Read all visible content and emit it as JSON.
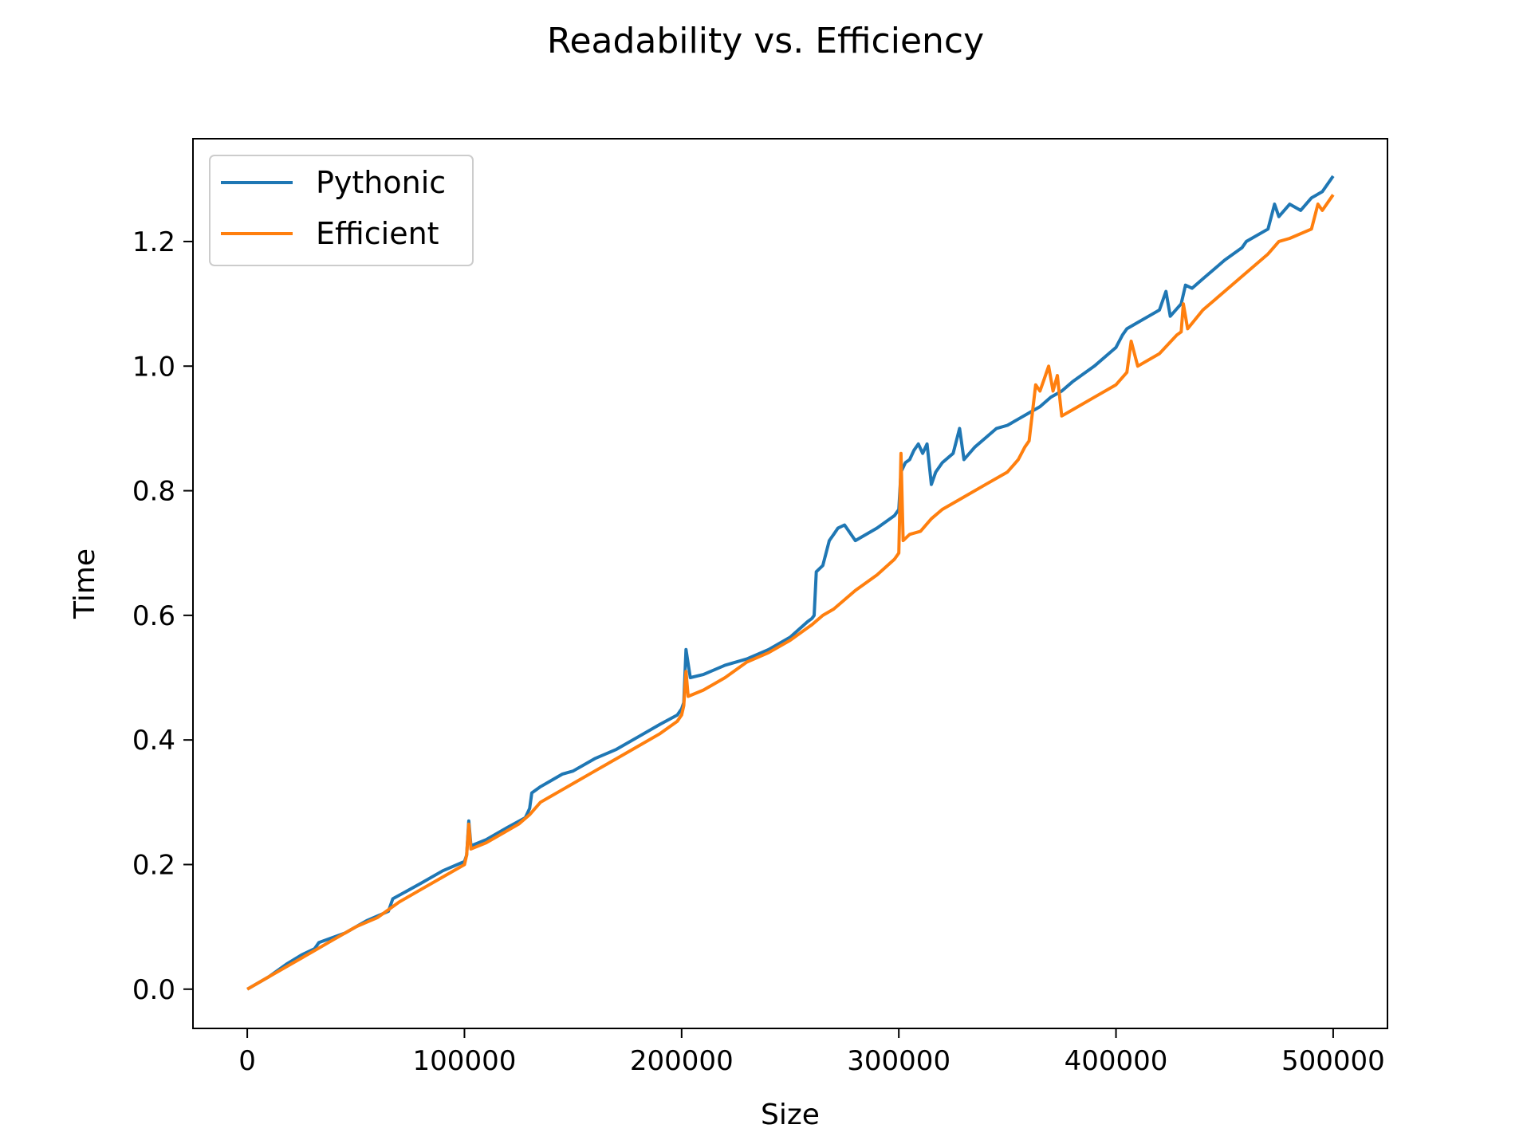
{
  "chart_data": {
    "type": "line",
    "title": "Readability vs. Efficiency",
    "xlabel": "Size",
    "ylabel": "Time",
    "xlim": [
      -25000,
      525000
    ],
    "ylim": [
      -0.063,
      1.365
    ],
    "x_ticks": [
      0,
      100000,
      200000,
      300000,
      400000,
      500000
    ],
    "x_tick_labels": [
      "0",
      "100000",
      "200000",
      "300000",
      "400000",
      "500000"
    ],
    "y_ticks": [
      0.0,
      0.2,
      0.4,
      0.6,
      0.8,
      1.0,
      1.2
    ],
    "y_tick_labels": [
      "0.0",
      "0.2",
      "0.4",
      "0.6",
      "0.8",
      "1.0",
      "1.2"
    ],
    "grid": false,
    "legend_position": "top-left",
    "series": [
      {
        "name": "Pythonic",
        "color": "#1f77b4",
        "x": [
          0,
          10000,
          18000,
          25000,
          31000,
          33000,
          45000,
          55000,
          65000,
          67000,
          80000,
          90000,
          100000,
          101000,
          102000,
          103000,
          110000,
          120000,
          128000,
          130000,
          131000,
          135000,
          140000,
          145000,
          150000,
          160000,
          170000,
          180000,
          190000,
          198000,
          200000,
          201000,
          202000,
          204000,
          210000,
          220000,
          230000,
          240000,
          250000,
          258000,
          260000,
          261000,
          262000,
          265000,
          268000,
          270000,
          272000,
          275000,
          280000,
          290000,
          298000,
          300000,
          301000,
          303000,
          305000,
          307000,
          309000,
          311000,
          313000,
          315000,
          317000,
          320000,
          325000,
          328000,
          330000,
          335000,
          340000,
          345000,
          350000,
          355000,
          360000,
          365000,
          370000,
          375000,
          380000,
          390000,
          400000,
          403000,
          405000,
          410000,
          415000,
          420000,
          423000,
          425000,
          430000,
          432000,
          435000,
          440000,
          450000,
          458000,
          460000,
          470000,
          473000,
          475000,
          480000,
          485000,
          490000,
          495000,
          500000
        ],
        "y": [
          0.0,
          0.02,
          0.04,
          0.055,
          0.065,
          0.075,
          0.09,
          0.11,
          0.125,
          0.145,
          0.17,
          0.19,
          0.205,
          0.215,
          0.27,
          0.23,
          0.24,
          0.26,
          0.275,
          0.29,
          0.315,
          0.325,
          0.335,
          0.345,
          0.35,
          0.37,
          0.385,
          0.405,
          0.425,
          0.44,
          0.45,
          0.46,
          0.545,
          0.5,
          0.505,
          0.52,
          0.53,
          0.545,
          0.565,
          0.59,
          0.595,
          0.6,
          0.67,
          0.68,
          0.72,
          0.73,
          0.74,
          0.745,
          0.72,
          0.74,
          0.76,
          0.77,
          0.83,
          0.845,
          0.85,
          0.865,
          0.875,
          0.86,
          0.875,
          0.81,
          0.83,
          0.845,
          0.86,
          0.9,
          0.85,
          0.87,
          0.885,
          0.9,
          0.905,
          0.915,
          0.925,
          0.935,
          0.95,
          0.96,
          0.975,
          1.0,
          1.03,
          1.05,
          1.06,
          1.07,
          1.08,
          1.09,
          1.12,
          1.08,
          1.1,
          1.13,
          1.125,
          1.14,
          1.17,
          1.19,
          1.2,
          1.22,
          1.26,
          1.24,
          1.26,
          1.25,
          1.27,
          1.28,
          1.305
        ]
      },
      {
        "name": "Efficient",
        "color": "#ff7f0e",
        "x": [
          0,
          10000,
          20000,
          30000,
          40000,
          50000,
          60000,
          70000,
          80000,
          90000,
          100000,
          101000,
          102000,
          103000,
          110000,
          120000,
          125000,
          130000,
          135000,
          140000,
          145000,
          150000,
          160000,
          170000,
          180000,
          190000,
          198000,
          200000,
          201000,
          202000,
          203000,
          210000,
          220000,
          230000,
          240000,
          250000,
          260000,
          265000,
          270000,
          280000,
          290000,
          298000,
          300000,
          301000,
          302000,
          305000,
          310000,
          315000,
          320000,
          330000,
          340000,
          350000,
          355000,
          358000,
          360000,
          363000,
          365000,
          367000,
          369000,
          371000,
          373000,
          375000,
          380000,
          390000,
          400000,
          405000,
          407000,
          410000,
          420000,
          428000,
          430000,
          431000,
          433000,
          440000,
          450000,
          460000,
          470000,
          475000,
          480000,
          490000,
          493000,
          495000,
          500000
        ],
        "y": [
          0.0,
          0.02,
          0.04,
          0.06,
          0.08,
          0.1,
          0.115,
          0.14,
          0.16,
          0.18,
          0.2,
          0.215,
          0.265,
          0.225,
          0.235,
          0.255,
          0.265,
          0.28,
          0.3,
          0.31,
          0.32,
          0.33,
          0.35,
          0.37,
          0.39,
          0.41,
          0.43,
          0.44,
          0.455,
          0.51,
          0.47,
          0.48,
          0.5,
          0.525,
          0.54,
          0.56,
          0.585,
          0.6,
          0.61,
          0.64,
          0.665,
          0.69,
          0.7,
          0.86,
          0.72,
          0.73,
          0.735,
          0.755,
          0.77,
          0.79,
          0.81,
          0.83,
          0.85,
          0.87,
          0.88,
          0.97,
          0.96,
          0.98,
          1.0,
          0.96,
          0.985,
          0.92,
          0.93,
          0.95,
          0.97,
          0.99,
          1.04,
          1.0,
          1.02,
          1.05,
          1.055,
          1.1,
          1.06,
          1.09,
          1.12,
          1.15,
          1.18,
          1.2,
          1.205,
          1.22,
          1.26,
          1.25,
          1.275
        ]
      }
    ]
  }
}
